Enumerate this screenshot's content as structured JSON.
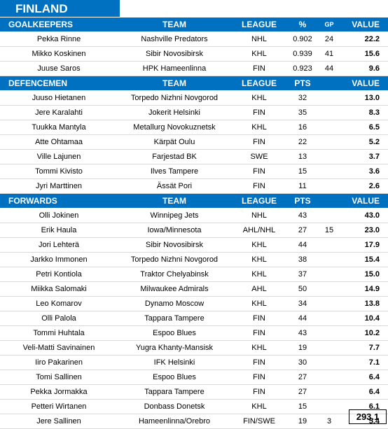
{
  "title": "FINLAND",
  "sections": [
    {
      "key": "goalkeepers",
      "header": {
        "name": "GOALKEEPERS",
        "team": "TEAM",
        "league": "LEAGUE",
        "stat": "%",
        "gp": "GP",
        "value": "VALUE"
      },
      "rows": [
        {
          "name": "Pekka Rinne",
          "team": "Nashville Predators",
          "league": "NHL",
          "stat": "0.902",
          "gp": "24",
          "value": "22.2"
        },
        {
          "name": "Mikko Koskinen",
          "team": "Sibir Novosibirsk",
          "league": "KHL",
          "stat": "0.939",
          "gp": "41",
          "value": "15.6"
        },
        {
          "name": "Juuse Saros",
          "team": "HPK Hameenlinna",
          "league": "FIN",
          "stat": "0.923",
          "gp": "44",
          "value": "9.6"
        }
      ]
    },
    {
      "key": "defencemen",
      "header": {
        "name": "DEFENCEMEN",
        "team": "TEAM",
        "league": "LEAGUE",
        "stat": "PTS",
        "gp": "",
        "value": "VALUE"
      },
      "rows": [
        {
          "name": "Juuso Hietanen",
          "team": "Torpedo Nizhni Novgorod",
          "league": "KHL",
          "stat": "32",
          "gp": "",
          "value": "13.0"
        },
        {
          "name": "Jere Karalahti",
          "team": "Jokerit Helsinki",
          "league": "FIN",
          "stat": "35",
          "gp": "",
          "value": "8.3"
        },
        {
          "name": "Tuukka Mantyla",
          "team": "Metallurg Novokuznetsk",
          "league": "KHL",
          "stat": "16",
          "gp": "",
          "value": "6.5"
        },
        {
          "name": "Atte Ohtamaa",
          "team": "Kärpät Oulu",
          "league": "FIN",
          "stat": "22",
          "gp": "",
          "value": "5.2"
        },
        {
          "name": "Ville Lajunen",
          "team": "Farjestad BK",
          "league": "SWE",
          "stat": "13",
          "gp": "",
          "value": "3.7"
        },
        {
          "name": "Tommi Kivisto",
          "team": "Ilves Tampere",
          "league": "FIN",
          "stat": "15",
          "gp": "",
          "value": "3.6"
        },
        {
          "name": "Jyri Marttinen",
          "team": "Ässät Pori",
          "league": "FIN",
          "stat": "11",
          "gp": "",
          "value": "2.6"
        }
      ]
    },
    {
      "key": "forwards",
      "header": {
        "name": "FORWARDS",
        "team": "TEAM",
        "league": "LEAGUE",
        "stat": "PTS",
        "gp": "",
        "value": "VALUE"
      },
      "rows": [
        {
          "name": "Olli Jokinen",
          "team": "Winnipeg Jets",
          "league": "NHL",
          "stat": "43",
          "gp": "",
          "value": "43.0"
        },
        {
          "name": "Erik Haula",
          "team": "Iowa/Minnesota",
          "league": "AHL/NHL",
          "stat": "27",
          "gp": "15",
          "value": "23.0"
        },
        {
          "name": "Jori Lehterä",
          "team": "Sibir Novosibirsk",
          "league": "KHL",
          "stat": "44",
          "gp": "",
          "value": "17.9"
        },
        {
          "name": "Jarkko Immonen",
          "team": "Torpedo Nizhni Novgorod",
          "league": "KHL",
          "stat": "38",
          "gp": "",
          "value": "15.4"
        },
        {
          "name": "Petri Kontiola",
          "team": "Traktor Chelyabinsk",
          "league": "KHL",
          "stat": "37",
          "gp": "",
          "value": "15.0"
        },
        {
          "name": "Miikka Salomaki",
          "team": "Milwaukee Admirals",
          "league": "AHL",
          "stat": "50",
          "gp": "",
          "value": "14.9"
        },
        {
          "name": "Leo Komarov",
          "team": "Dynamo Moscow",
          "league": "KHL",
          "stat": "34",
          "gp": "",
          "value": "13.8"
        },
        {
          "name": "Olli Palola",
          "team": "Tappara Tampere",
          "league": "FIN",
          "stat": "44",
          "gp": "",
          "value": "10.4"
        },
        {
          "name": "Tommi Huhtala",
          "team": "Espoo Blues",
          "league": "FIN",
          "stat": "43",
          "gp": "",
          "value": "10.2"
        },
        {
          "name": "Veli-Matti Savinainen",
          "team": "Yugra Khanty-Mansisk",
          "league": "KHL",
          "stat": "19",
          "gp": "",
          "value": "7.7"
        },
        {
          "name": "Iiro Pakarinen",
          "team": "IFK Helsinki",
          "league": "FIN",
          "stat": "30",
          "gp": "",
          "value": "7.1"
        },
        {
          "name": "Tomi Sallinen",
          "team": "Espoo Blues",
          "league": "FIN",
          "stat": "27",
          "gp": "",
          "value": "6.4"
        },
        {
          "name": "Pekka Jormakka",
          "team": "Tappara Tampere",
          "league": "FIN",
          "stat": "27",
          "gp": "",
          "value": "6.4"
        },
        {
          "name": "Petteri Wirtanen",
          "team": "Donbass Donetsk",
          "league": "KHL",
          "stat": "15",
          "gp": "",
          "value": "6.1"
        },
        {
          "name": "Jere Sallinen",
          "team": "Hameenlinna/Orebro",
          "league": "FIN/SWE",
          "stat": "19",
          "gp": "3",
          "value": "5.4"
        }
      ]
    }
  ],
  "total": "293.1",
  "colors": {
    "header_bg": "#0070c0",
    "header_text": "#ffffff"
  }
}
